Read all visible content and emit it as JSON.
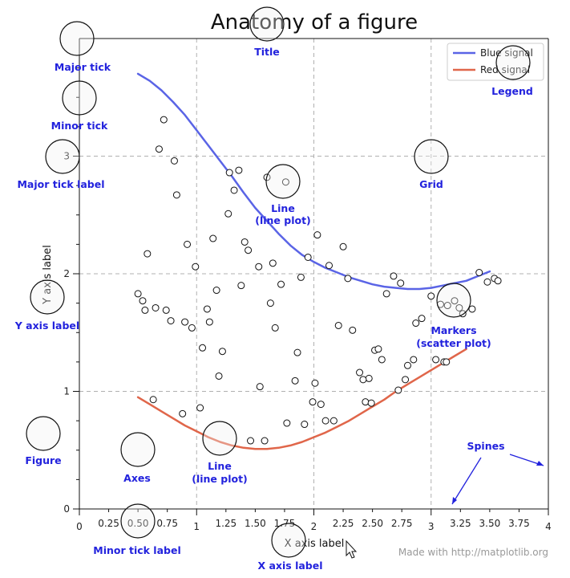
{
  "title": "Anatomy of a figure",
  "xlabel": "X axis label",
  "ylabel": "Y axis label",
  "credit": "Made with http://matplotlib.org",
  "colors": {
    "blue": "#5a64e6",
    "red": "#e0664a",
    "annotation": "#2222dd",
    "grid": "#b0b0b0"
  },
  "legend": {
    "placement": "top-right",
    "entries": [
      "Blue signal",
      "Red signal"
    ]
  },
  "annotations": {
    "major_tick": "Major tick",
    "minor_tick": "Minor tick",
    "major_tick_label": "Major tick label",
    "y_axis_label": "Y axis label",
    "figure": "Figure",
    "axes": "Axes",
    "minor_tick_label": "Minor tick label",
    "x_axis_label": "X axis label",
    "title": "Title",
    "line_plot": [
      "Line",
      "(line plot)"
    ],
    "grid": "Grid",
    "legend": "Legend",
    "markers": [
      "Markers",
      "(scatter plot)"
    ],
    "spines": "Spines"
  },
  "chart_data": {
    "type": "line",
    "title": "Anatomy of a figure",
    "xlabel": "X axis label",
    "ylabel": "Y axis label",
    "xlim": [
      0,
      4
    ],
    "ylim": [
      0,
      4
    ],
    "grid": true,
    "x_major_ticks": [
      0,
      1,
      2,
      3,
      4
    ],
    "x_major_tick_labels": [
      "0",
      "1",
      "2",
      "3",
      "4"
    ],
    "x_minor_ticks": [
      0.25,
      0.5,
      0.75,
      1.25,
      1.5,
      1.75,
      2.25,
      2.5,
      2.75,
      3.25,
      3.5,
      3.75
    ],
    "x_minor_tick_labels": [
      "0.25",
      "0.50",
      "0.75",
      "1.25",
      "1.50",
      "1.75",
      "2.25",
      "2.50",
      "2.75",
      "3.25",
      "3.50",
      "3.75"
    ],
    "y_major_ticks": [
      0,
      1,
      2,
      3
    ],
    "y_major_tick_labels": [
      "0",
      "1",
      "2",
      "3"
    ],
    "y_minor_ticks": [
      0.25,
      0.5,
      0.75,
      1.25,
      1.5,
      1.75,
      2.25,
      2.5,
      2.75,
      3.25,
      3.5,
      3.75
    ],
    "series": [
      {
        "name": "Blue signal",
        "kind": "line",
        "color": "#5a64e6",
        "x": [
          0.5,
          0.6,
          0.7,
          0.8,
          0.9,
          1.0,
          1.1,
          1.2,
          1.3,
          1.4,
          1.5,
          1.6,
          1.7,
          1.8,
          1.9,
          2.0,
          2.1,
          2.2,
          2.3,
          2.4,
          2.5,
          2.6,
          2.7,
          2.8,
          2.9,
          3.0,
          3.1,
          3.2,
          3.3,
          3.4,
          3.5
        ],
        "y": [
          3.7,
          3.64,
          3.56,
          3.46,
          3.35,
          3.22,
          3.09,
          2.96,
          2.83,
          2.69,
          2.56,
          2.45,
          2.34,
          2.24,
          2.16,
          2.1,
          2.05,
          2.01,
          1.97,
          1.94,
          1.91,
          1.89,
          1.88,
          1.87,
          1.87,
          1.88,
          1.9,
          1.92,
          1.94,
          1.98,
          2.02
        ]
      },
      {
        "name": "Red signal",
        "kind": "line",
        "color": "#e0664a",
        "x": [
          0.5,
          0.6,
          0.7,
          0.8,
          0.9,
          1.0,
          1.1,
          1.2,
          1.3,
          1.4,
          1.5,
          1.6,
          1.7,
          1.8,
          1.9,
          2.0,
          2.1,
          2.2,
          2.3,
          2.4,
          2.5,
          2.6,
          2.7,
          2.8,
          2.9,
          3.0,
          3.1,
          3.2,
          3.3
        ],
        "y": [
          0.95,
          0.89,
          0.83,
          0.77,
          0.71,
          0.66,
          0.61,
          0.57,
          0.54,
          0.52,
          0.51,
          0.51,
          0.52,
          0.54,
          0.57,
          0.61,
          0.65,
          0.7,
          0.75,
          0.81,
          0.87,
          0.93,
          1.0,
          1.06,
          1.12,
          1.18,
          1.24,
          1.3,
          1.36
        ]
      },
      {
        "name": "Markers",
        "kind": "scatter",
        "points": [
          [
            0.72,
            3.31
          ],
          [
            0.68,
            3.06
          ],
          [
            0.81,
            2.96
          ],
          [
            0.83,
            2.67
          ],
          [
            0.58,
            2.17
          ],
          [
            0.92,
            2.25
          ],
          [
            0.99,
            2.06
          ],
          [
            1.14,
            2.3
          ],
          [
            1.28,
            2.86
          ],
          [
            1.36,
            2.88
          ],
          [
            1.32,
            2.71
          ],
          [
            1.27,
            2.51
          ],
          [
            1.6,
            2.82
          ],
          [
            1.76,
            2.78
          ],
          [
            1.41,
            2.27
          ],
          [
            1.44,
            2.2
          ],
          [
            1.53,
            2.06
          ],
          [
            1.65,
            2.09
          ],
          [
            1.72,
            1.91
          ],
          [
            1.89,
            1.97
          ],
          [
            1.95,
            2.14
          ],
          [
            2.03,
            2.33
          ],
          [
            2.13,
            2.07
          ],
          [
            2.25,
            2.23
          ],
          [
            2.29,
            1.96
          ],
          [
            0.5,
            1.83
          ],
          [
            0.54,
            1.77
          ],
          [
            0.56,
            1.69
          ],
          [
            0.65,
            1.71
          ],
          [
            0.74,
            1.69
          ],
          [
            0.78,
            1.6
          ],
          [
            0.9,
            1.59
          ],
          [
            0.96,
            1.54
          ],
          [
            1.09,
            1.7
          ],
          [
            1.11,
            1.59
          ],
          [
            1.17,
            1.86
          ],
          [
            1.38,
            1.9
          ],
          [
            1.63,
            1.75
          ],
          [
            1.67,
            1.54
          ],
          [
            1.86,
            1.33
          ],
          [
            1.05,
            1.37
          ],
          [
            1.22,
            1.34
          ],
          [
            1.19,
            1.13
          ],
          [
            1.54,
            1.04
          ],
          [
            1.84,
            1.09
          ],
          [
            2.01,
            1.07
          ],
          [
            2.21,
            1.56
          ],
          [
            2.33,
            1.52
          ],
          [
            2.39,
            1.16
          ],
          [
            2.47,
            1.11
          ],
          [
            2.42,
            1.1
          ],
          [
            2.52,
            1.35
          ],
          [
            2.55,
            1.36
          ],
          [
            2.58,
            1.27
          ],
          [
            2.62,
            1.83
          ],
          [
            2.68,
            1.98
          ],
          [
            2.74,
            1.92
          ],
          [
            2.87,
            1.58
          ],
          [
            2.92,
            1.62
          ],
          [
            2.8,
            1.22
          ],
          [
            2.85,
            1.27
          ],
          [
            2.78,
            1.1
          ],
          [
            2.72,
            1.01
          ],
          [
            3.0,
            1.81
          ],
          [
            3.08,
            1.74
          ],
          [
            3.14,
            1.73
          ],
          [
            3.2,
            1.77
          ],
          [
            3.24,
            1.71
          ],
          [
            3.27,
            1.66
          ],
          [
            3.35,
            1.7
          ],
          [
            3.41,
            2.01
          ],
          [
            3.48,
            1.93
          ],
          [
            3.54,
            1.96
          ],
          [
            3.57,
            1.94
          ],
          [
            3.04,
            1.27
          ],
          [
            3.11,
            1.25
          ],
          [
            3.13,
            1.25
          ],
          [
            0.63,
            0.93
          ],
          [
            0.88,
            0.81
          ],
          [
            1.03,
            0.86
          ],
          [
            1.58,
            0.58
          ],
          [
            1.46,
            0.58
          ],
          [
            1.77,
            0.73
          ],
          [
            1.92,
            0.72
          ],
          [
            1.99,
            0.91
          ],
          [
            2.06,
            0.89
          ],
          [
            2.1,
            0.75
          ],
          [
            2.17,
            0.75
          ],
          [
            2.44,
            0.91
          ],
          [
            2.49,
            0.9
          ]
        ]
      }
    ]
  }
}
